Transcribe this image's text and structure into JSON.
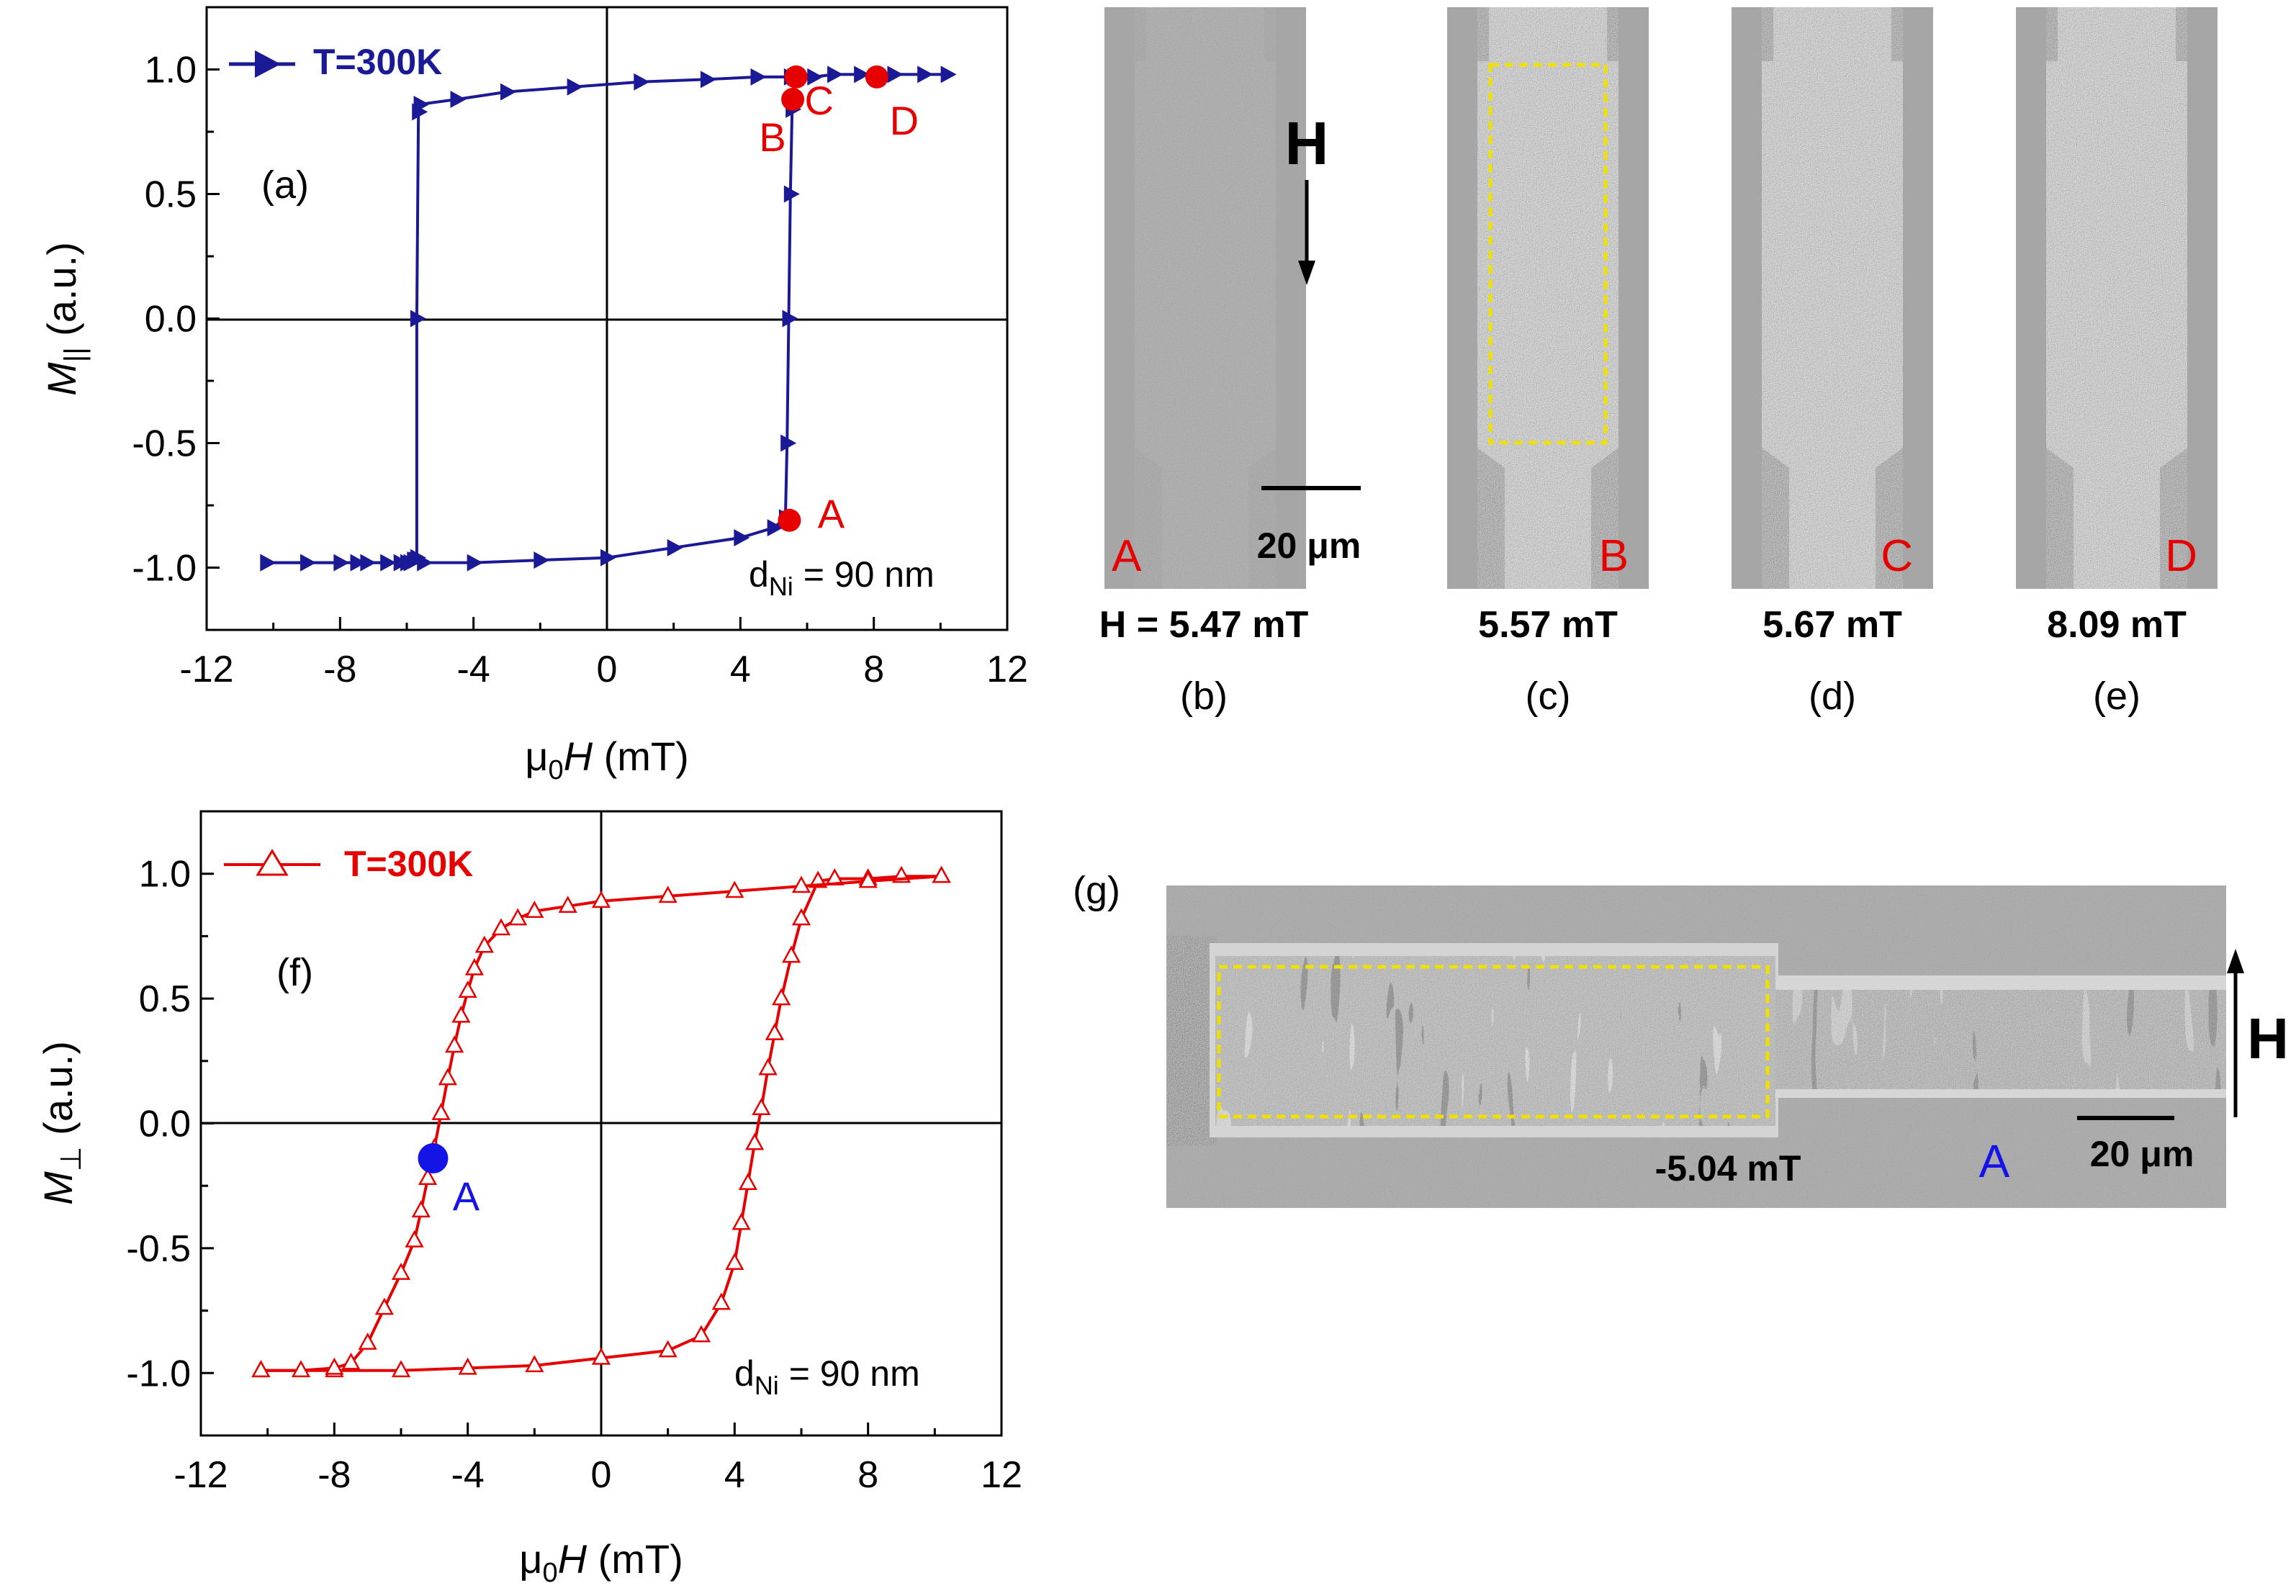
{
  "chart_data": [
    {
      "panel": "(a)",
      "type": "line",
      "xlabel_main": "μ",
      "xlabel_sub": "0",
      "xlabel_var": "H",
      "xlabel_unit": " (mT)",
      "ylabel_main": "M",
      "ylabel_sub": "||",
      "ylabel_unit": " (a.u.)",
      "xlim": [
        -12,
        12
      ],
      "ylim": [
        -1.25,
        1.25
      ],
      "xticks": [
        -12,
        -8,
        -4,
        0,
        4,
        8,
        12
      ],
      "yticks": [
        1.0,
        0.5,
        0.0,
        -0.5,
        -1.0
      ],
      "xtick_labels": [
        "-12",
        "-8",
        "-4",
        "0",
        "4",
        "8",
        "12"
      ],
      "ytick_labels": [
        "1.0",
        "0.5",
        "0.0",
        "-0.5",
        "-1.0"
      ],
      "legend": "T=300K",
      "legend_position": "top-left",
      "color": "#1a1a96",
      "marker": "filled-triangle-right",
      "annotation": {
        "pre": "d",
        "sub": "Ni",
        "post": " = 90 nm"
      },
      "series": [
        {
          "name": "T=300K",
          "x": [
            -10.2,
            -9.0,
            -8.0,
            -7.2,
            -6.6,
            -6.2,
            -6.0,
            -5.9,
            -5.8,
            -5.75,
            -5.7,
            -5.7,
            -5.65,
            -5.6,
            -4.5,
            -3.0,
            -1.0,
            1.0,
            3.0,
            4.5,
            5.5,
            5.6,
            5.65,
            5.7,
            5.9,
            6.2,
            6.8,
            7.6,
            8.6,
            9.5,
            10.2
          ],
          "y": [
            -0.98,
            -0.98,
            -0.98,
            -0.98,
            -0.98,
            -0.98,
            -0.98,
            -0.98,
            -0.97,
            -0.97,
            -0.96,
            0.0,
            0.83,
            0.86,
            0.88,
            0.91,
            0.93,
            0.95,
            0.96,
            0.97,
            0.97,
            0.97,
            0.97,
            0.97,
            0.97,
            0.97,
            0.98,
            0.98,
            0.98,
            0.98,
            0.98
          ]
        },
        {
          "name": "",
          "x": [
            -10.2,
            -9.0,
            -7.5,
            -5.5,
            -4.0,
            -2.0,
            0.0,
            2.0,
            4.0,
            5.0,
            5.35,
            5.4,
            5.45,
            5.5,
            5.55
          ],
          "y": [
            -0.98,
            -0.98,
            -0.98,
            -0.98,
            -0.98,
            -0.97,
            -0.96,
            -0.92,
            -0.88,
            -0.84,
            -0.8,
            -0.5,
            0.0,
            0.5,
            0.84
          ]
        }
      ],
      "points": [
        {
          "label": "A",
          "x": 5.47,
          "y": -0.81
        },
        {
          "label": "B",
          "x": 5.57,
          "y": 0.88
        },
        {
          "label": "C",
          "x": 5.67,
          "y": 0.97
        },
        {
          "label": "D",
          "x": 8.09,
          "y": 0.97
        }
      ],
      "points_color": "#e60000"
    },
    {
      "panel": "(f)",
      "type": "line",
      "xlabel_main": "μ",
      "xlabel_sub": "0",
      "xlabel_var": "H",
      "xlabel_unit": " (mT)",
      "ylabel_main": "M",
      "ylabel_sub": "⊥",
      "ylabel_unit": " (a.u.)",
      "xlim": [
        -12,
        12
      ],
      "ylim": [
        -1.25,
        1.25
      ],
      "xticks": [
        -12,
        -8,
        -4,
        0,
        4,
        8,
        12
      ],
      "yticks": [
        1.0,
        0.5,
        0.0,
        -0.5,
        -1.0
      ],
      "xtick_labels": [
        "-12",
        "-8",
        "-4",
        "0",
        "4",
        "8",
        "12"
      ],
      "ytick_labels": [
        "1.0",
        "0.5",
        "0.0",
        "-0.5",
        "-1.0"
      ],
      "legend": "T=300K",
      "legend_position": "top-left",
      "color": "#e60000",
      "marker": "open-triangle-up",
      "annotation": {
        "pre": "d",
        "sub": "Ni",
        "post": " = 90 nm"
      },
      "series": [
        {
          "name": "T=300K",
          "x": [
            10.2,
            9.0,
            8.0,
            7.0,
            6.5,
            6.0,
            5.7,
            5.4,
            5.2,
            5.0,
            4.8,
            4.6,
            4.4,
            4.2,
            4.0,
            3.6,
            3.0,
            2.0,
            0.0,
            -2.0,
            -4.0,
            -6.0,
            -8.0,
            -10.2
          ],
          "y": [
            0.99,
            0.99,
            0.98,
            0.98,
            0.97,
            0.82,
            0.67,
            0.5,
            0.36,
            0.22,
            0.06,
            -0.08,
            -0.24,
            -0.4,
            -0.56,
            -0.72,
            -0.85,
            -0.91,
            -0.94,
            -0.97,
            -0.98,
            -0.99,
            -0.99,
            -0.99
          ]
        },
        {
          "name": "",
          "x": [
            -10.2,
            -9.0,
            -8.0,
            -7.5,
            -7.0,
            -6.5,
            -6.0,
            -5.6,
            -5.4,
            -5.2,
            -5.0,
            -4.8,
            -4.6,
            -4.4,
            -4.2,
            -4.0,
            -3.8,
            -3.5,
            -3.0,
            -2.5,
            -2.0,
            -1.0,
            0.0,
            2.0,
            4.0,
            6.0,
            8.0,
            10.2
          ],
          "y": [
            -0.99,
            -0.99,
            -0.98,
            -0.96,
            -0.88,
            -0.74,
            -0.6,
            -0.47,
            -0.35,
            -0.22,
            -0.1,
            0.04,
            0.18,
            0.31,
            0.43,
            0.53,
            0.62,
            0.71,
            0.78,
            0.82,
            0.85,
            0.87,
            0.89,
            0.91,
            0.93,
            0.95,
            0.97,
            0.99
          ]
        }
      ],
      "points": [
        {
          "label": "A",
          "x": -5.04,
          "y": -0.14
        }
      ],
      "points_color": "#1414e6"
    }
  ],
  "images": {
    "scale_label": "20 μm",
    "field_label": "H",
    "strips": [
      {
        "panel": "(b)",
        "letter": "A",
        "field": "H = 5.47 mT",
        "level": 0
      },
      {
        "panel": "(c)",
        "letter": "B",
        "field": "5.57 mT",
        "level": 0.8
      },
      {
        "panel": "(d)",
        "letter": "C",
        "field": "5.67 mT",
        "level": 1
      },
      {
        "panel": "(e)",
        "letter": "D",
        "field": "8.09 mT",
        "level": 1
      }
    ],
    "letter_color": "#e60000",
    "highlight_color": "#f0e000",
    "g": {
      "panel": "(g)",
      "field": "-5.04 mT",
      "letter": "A",
      "letter_color": "#1414e6"
    }
  }
}
